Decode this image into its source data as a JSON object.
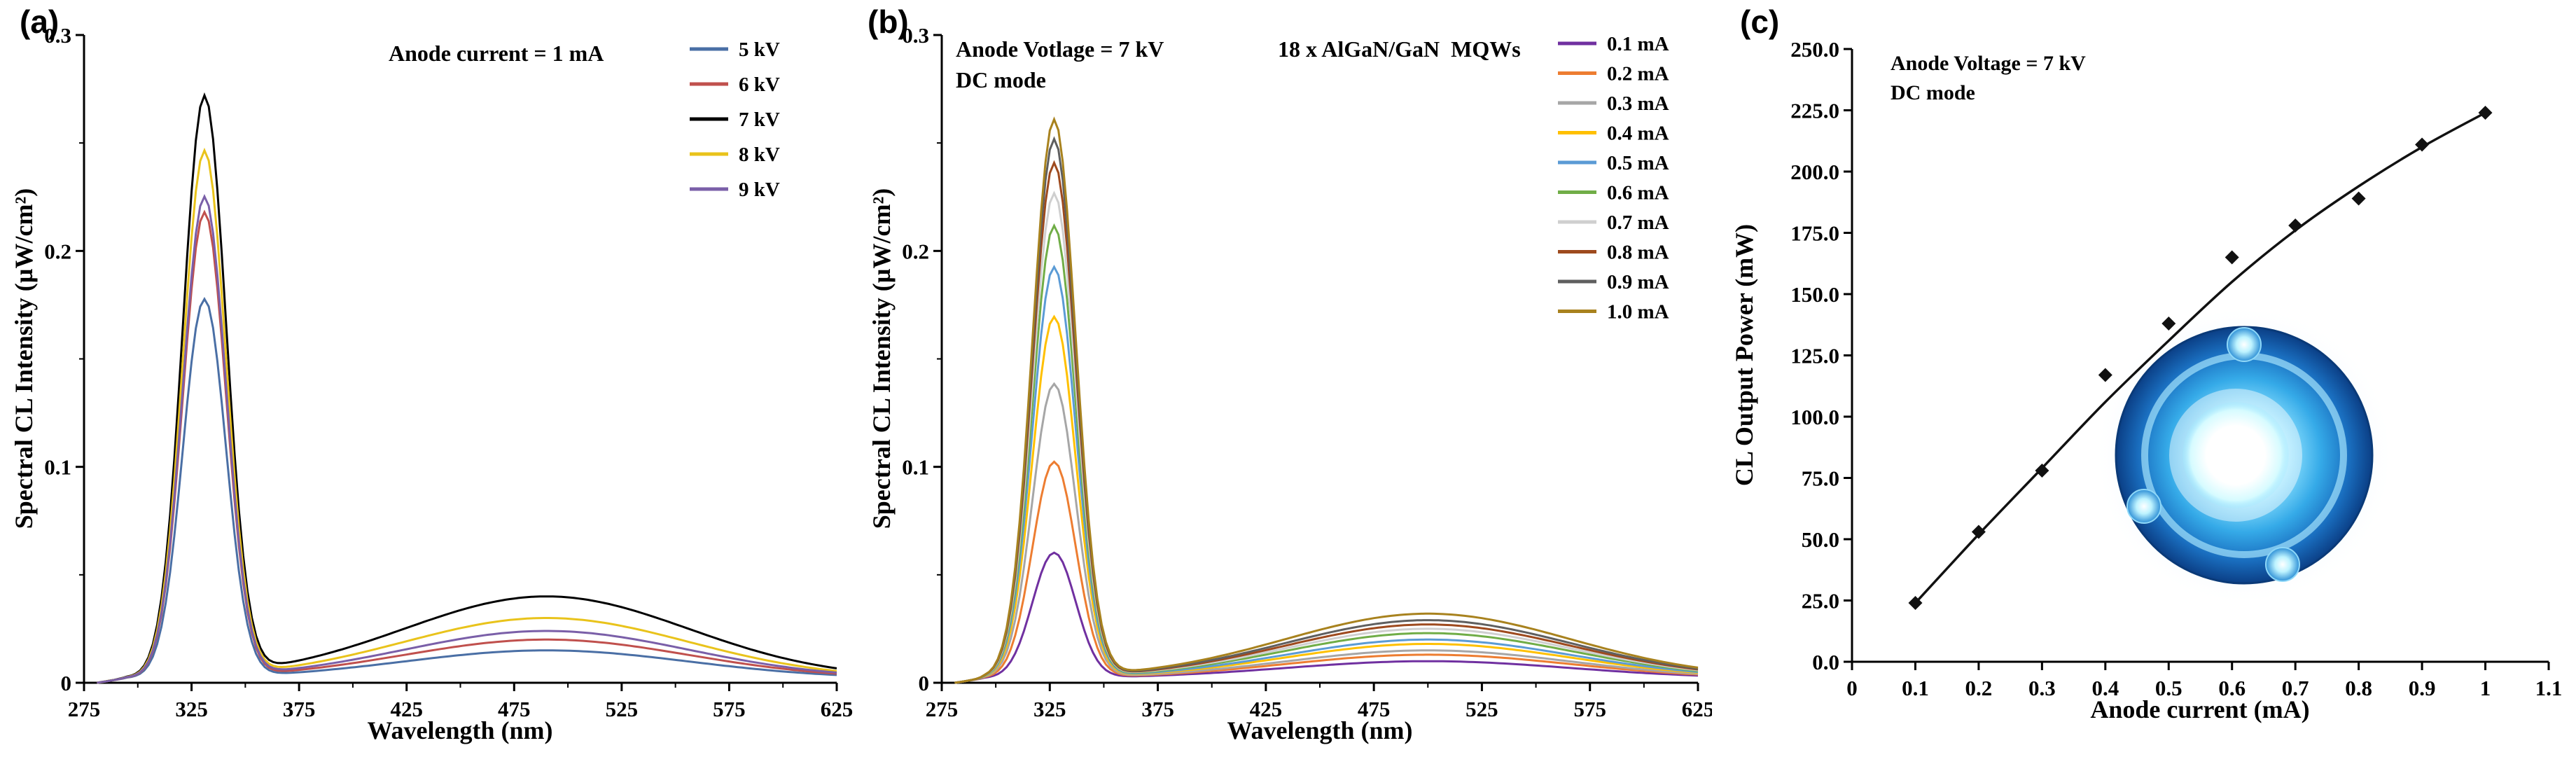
{
  "chart_data": [
    {
      "id": "a",
      "type": "line",
      "panel_label": "(a)",
      "annotation": "Anode current = 1 mA",
      "xlabel": "Wavelength (nm)",
      "ylabel": "Spectral CL Intensity (µW/cm²)",
      "xlim": [
        275,
        625
      ],
      "ylim": [
        0,
        0.3
      ],
      "xtick_values": [
        275,
        325,
        375,
        425,
        475,
        525,
        575,
        625
      ],
      "xtick_labels": [
        "275",
        "325",
        "375",
        "425",
        "475",
        "525",
        "575",
        "625"
      ],
      "ytick_values": [
        0,
        0.1,
        0.2,
        0.3
      ],
      "ytick_labels": [
        "0",
        "0.1",
        "0.2",
        "0.3"
      ],
      "legend_position": "top-right",
      "uv_peak_nm": 331,
      "visible_band_nm": 490,
      "series": [
        {
          "label": "5 kV",
          "color": "#4a6fa5",
          "peak_intensity": 0.175,
          "band_intensity": 0.013
        },
        {
          "label": "6 kV",
          "color": "#c0504d",
          "peak_intensity": 0.215,
          "band_intensity": 0.018
        },
        {
          "label": "7 kV",
          "color": "#000000",
          "peak_intensity": 0.268,
          "band_intensity": 0.038
        },
        {
          "label": "8 kV",
          "color": "#e9c31b",
          "peak_intensity": 0.243,
          "band_intensity": 0.028
        },
        {
          "label": "9 kV",
          "color": "#7a5fa8",
          "peak_intensity": 0.222,
          "band_intensity": 0.022
        }
      ]
    },
    {
      "id": "b",
      "type": "line",
      "panel_label": "(b)",
      "annotation_left_line1": "Anode Votlage = 7 kV",
      "annotation_left_line2": "DC mode",
      "annotation_center": "18 x AlGaN/GaN  MQWs",
      "xlabel": "Wavelength (nm)",
      "ylabel": "Spectral CL Intensity (µW/cm²)",
      "xlim": [
        275,
        625
      ],
      "ylim": [
        0,
        0.3
      ],
      "xtick_values": [
        275,
        325,
        375,
        425,
        475,
        525,
        575,
        625
      ],
      "xtick_labels": [
        "275",
        "325",
        "375",
        "425",
        "475",
        "525",
        "575",
        "625"
      ],
      "ytick_values": [
        0,
        0.1,
        0.2,
        0.3
      ],
      "ytick_labels": [
        "0",
        "0.1",
        "0.2",
        "0.3"
      ],
      "legend_position": "top-right",
      "uv_peak_nm": 327,
      "visible_band_nm": 500,
      "series": [
        {
          "label": "0.1 mA",
          "color": "#7030a0",
          "peak_intensity": 0.058,
          "band_intensity": 0.008
        },
        {
          "label": "0.2 mA",
          "color": "#ed7d31",
          "peak_intensity": 0.1,
          "band_intensity": 0.011
        },
        {
          "label": "0.3 mA",
          "color": "#a6a6a6",
          "peak_intensity": 0.136,
          "band_intensity": 0.013
        },
        {
          "label": "0.4 mA",
          "color": "#ffc000",
          "peak_intensity": 0.167,
          "band_intensity": 0.016
        },
        {
          "label": "0.5 mA",
          "color": "#5b9bd5",
          "peak_intensity": 0.19,
          "band_intensity": 0.018
        },
        {
          "label": "0.6 mA",
          "color": "#70ad47",
          "peak_intensity": 0.209,
          "band_intensity": 0.021
        },
        {
          "label": "0.7 mA",
          "color": "#cfcfcf",
          "peak_intensity": 0.224,
          "band_intensity": 0.023
        },
        {
          "label": "0.8 mA",
          "color": "#9e4a1e",
          "peak_intensity": 0.238,
          "band_intensity": 0.025
        },
        {
          "label": "0.9 mA",
          "color": "#5f5f5f",
          "peak_intensity": 0.249,
          "band_intensity": 0.027
        },
        {
          "label": "1.0 mA",
          "color": "#a8821e",
          "peak_intensity": 0.258,
          "band_intensity": 0.03
        }
      ]
    },
    {
      "id": "c",
      "type": "scatter",
      "panel_label": "(c)",
      "annotation_line1": "Anode Voltage = 7 kV",
      "annotation_line2": "DC mode",
      "xlabel": "Anode current (mA)",
      "ylabel": "CL Output Power (mW)",
      "xlim": [
        0,
        1.1
      ],
      "ylim": [
        0,
        250
      ],
      "xtick_values": [
        0,
        0.1,
        0.2,
        0.3,
        0.4,
        0.5,
        0.6,
        0.7,
        0.8,
        0.9,
        1,
        1.1
      ],
      "xtick_labels": [
        "0",
        "0.1",
        "0.2",
        "0.3",
        "0.4",
        "0.5",
        "0.6",
        "0.7",
        "0.8",
        "0.9",
        "1",
        "1.1"
      ],
      "ytick_values": [
        0,
        25,
        50,
        75,
        100,
        125,
        150,
        175,
        200,
        225,
        250
      ],
      "ytick_labels": [
        "0.0",
        "25.0",
        "50.0",
        "75.0",
        "100.0",
        "125.0",
        "150.0",
        "175.0",
        "200.0",
        "225.0",
        "250.0"
      ],
      "marker": "diamond",
      "marker_color": "#111111",
      "line_color": "#111111",
      "points_x": [
        0.1,
        0.2,
        0.3,
        0.4,
        0.5,
        0.6,
        0.7,
        0.8,
        0.9,
        1.0
      ],
      "points_y": [
        24,
        53,
        78,
        117,
        138,
        165,
        178,
        189,
        211,
        224
      ],
      "fit_curve_x": [
        0.1,
        0.2,
        0.3,
        0.4,
        0.5,
        0.6,
        0.7,
        0.8,
        0.9,
        1.0
      ],
      "fit_curve_y": [
        24,
        52,
        79,
        106,
        131,
        155,
        176,
        194,
        210,
        224
      ],
      "inset": {
        "description": "photograph of the CL lamp device emitting bright blue light"
      }
    }
  ]
}
